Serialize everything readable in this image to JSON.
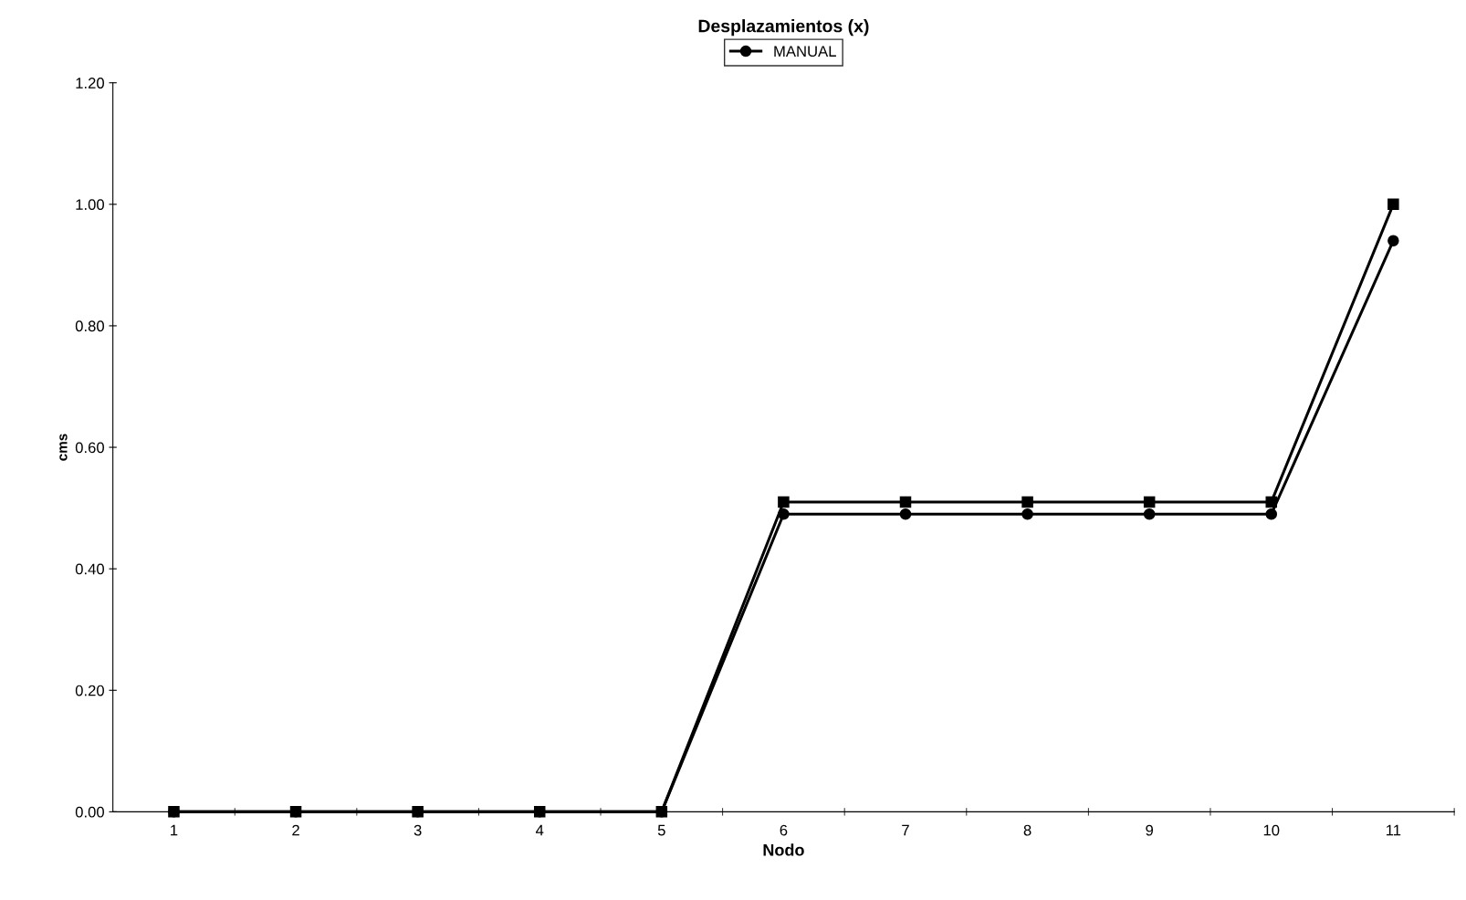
{
  "chart_data": {
    "type": "line",
    "title": "Desplazamientos (x)",
    "xlabel": "Nodo",
    "ylabel": "cms",
    "categories": [
      "1",
      "2",
      "3",
      "4",
      "5",
      "6",
      "7",
      "8",
      "9",
      "10",
      "11"
    ],
    "series": [
      {
        "name": "MANUAL",
        "color": "#000000",
        "marker": "circle",
        "values": [
          0,
          0,
          0,
          0,
          0,
          0.49,
          0.49,
          0.49,
          0.49,
          0.49,
          0.94
        ]
      },
      {
        "color": "#000000",
        "marker": "square",
        "values": [
          0,
          0,
          0,
          0,
          0,
          0.51,
          0.51,
          0.51,
          0.51,
          0.51,
          1.0
        ]
      }
    ],
    "ylim": [
      0,
      1.2
    ],
    "yticks": [
      {
        "value": 0,
        "label": "0.00"
      },
      {
        "value": 0.2,
        "label": "0.20"
      },
      {
        "value": 0.4,
        "label": "0.40"
      },
      {
        "value": 0.6,
        "label": "0.60"
      },
      {
        "value": 0.8,
        "label": "0.80"
      },
      {
        "value": 1.0,
        "label": "1.00"
      },
      {
        "value": 1.2,
        "label": "1.20"
      }
    ],
    "grid": false,
    "legend": "top",
    "line_style": "solid"
  }
}
